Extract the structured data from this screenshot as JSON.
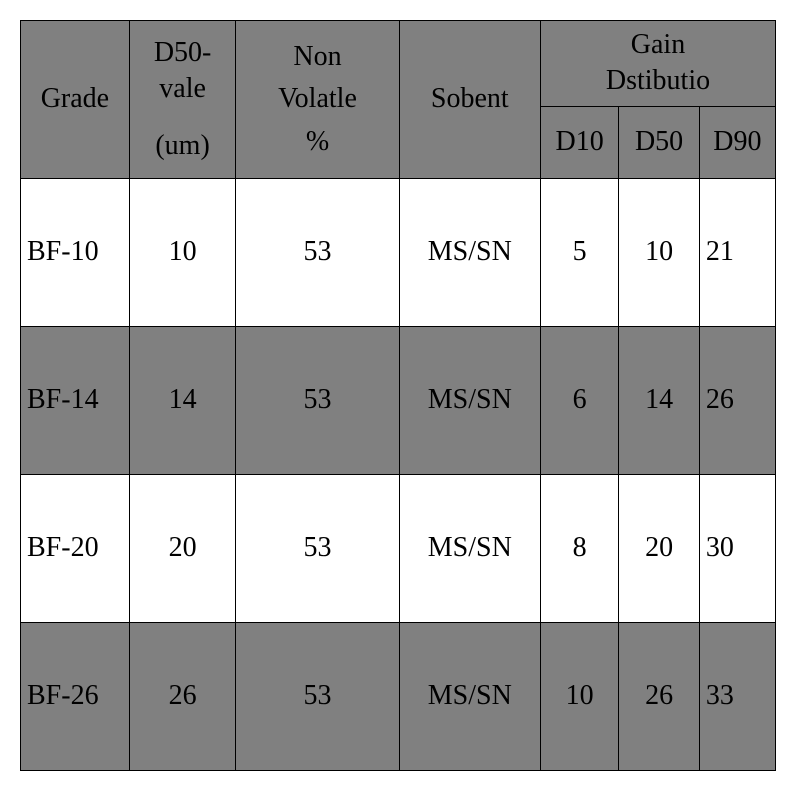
{
  "table": {
    "header_bg": "#808080",
    "row_bg_odd": "#ffffff",
    "row_bg_even": "#808080",
    "border_color": "#000000",
    "font_family": "SimSun, serif",
    "font_size": 28,
    "columns": {
      "grade": "Grade",
      "d50_value_line1": "D50-",
      "d50_value_line2": "vale",
      "d50_value_unit": "(um)",
      "non_volatile_line1": "Non",
      "non_volatile_line2": "Volatle",
      "non_volatile_line3": "%",
      "sobent": "Sobent",
      "gain_dist_line1": "Gain",
      "gain_dist_line2": "Dstibutio",
      "d10": "D10",
      "d50": "D50",
      "d90": "D90"
    },
    "col_widths": {
      "grade": 100,
      "d50_value": 98,
      "non_volatile": 150,
      "sobent": 130,
      "d10": 72,
      "d50": 74,
      "d90": 70
    },
    "rows": [
      {
        "grade": "BF-10",
        "d50_value": "10",
        "non_volatile": "53",
        "sobent": "MS/SN",
        "d10": "5",
        "d50": "10",
        "d90": "21"
      },
      {
        "grade": "BF-14",
        "d50_value": "14",
        "non_volatile": "53",
        "sobent": "MS/SN",
        "d10": "6",
        "d50": "14",
        "d90": "26"
      },
      {
        "grade": "BF-20",
        "d50_value": "20",
        "non_volatile": "53",
        "sobent": "MS/SN",
        "d10": "8",
        "d50": "20",
        "d90": "30"
      },
      {
        "grade": "BF-26",
        "d50_value": "26",
        "non_volatile": "53",
        "sobent": "MS/SN",
        "d10": "10",
        "d50": "26",
        "d90": "33"
      }
    ]
  }
}
